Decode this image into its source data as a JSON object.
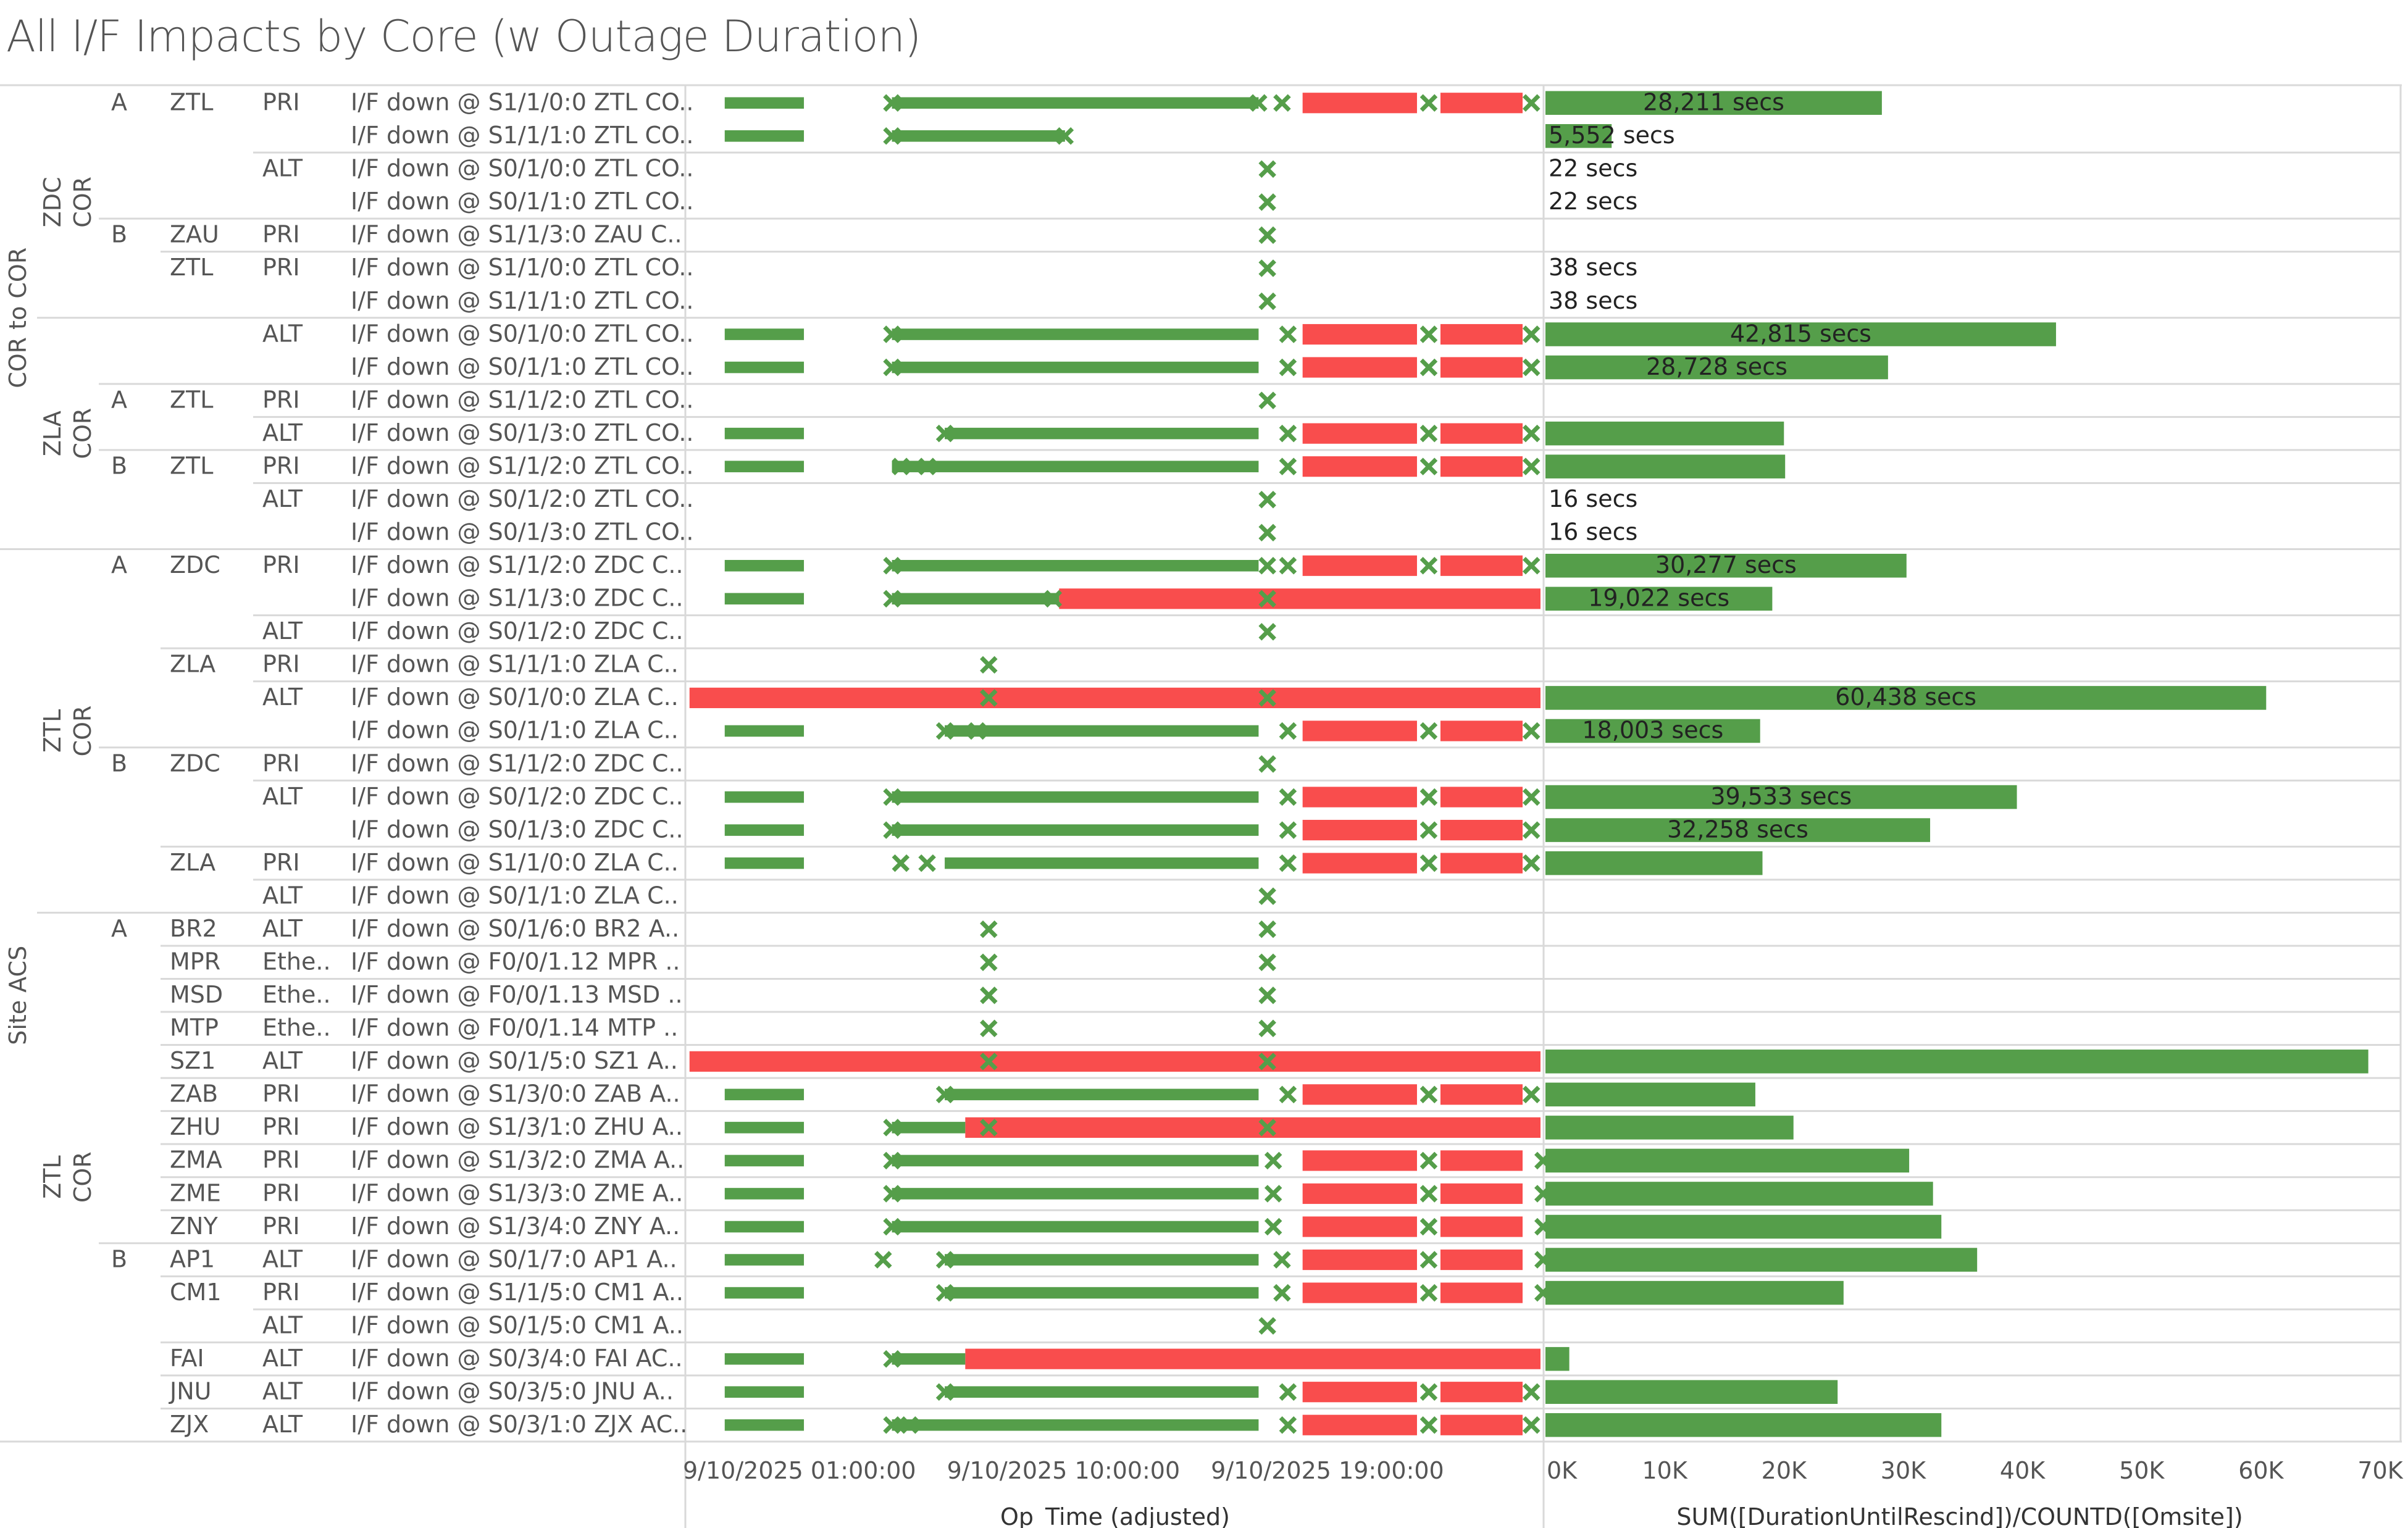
{
  "title": "All I/F Impacts by Core (w Outage Duration)",
  "colors": {
    "ok": "#559e4a",
    "down": "#f94d4d",
    "text": "#555555",
    "grid": "#d9d9d9"
  },
  "groups": [
    {
      "label": "COR to COR",
      "first": 0,
      "last": 13
    },
    {
      "label": "Site ACS",
      "first": 14,
      "last": 40
    }
  ],
  "cores": [
    {
      "label": "ZDC COR",
      "first": 0,
      "last": 6
    },
    {
      "label": "ZLA COR",
      "first": 7,
      "last": 13
    },
    {
      "label": "ZTL COR",
      "first": 14,
      "last": 24
    },
    {
      "label": "ZTL COR",
      "first": 25,
      "last": 40
    }
  ],
  "sides": [
    {
      "label": "A",
      "row": 0
    },
    {
      "label": "B",
      "row": 4
    },
    {
      "label": "A",
      "row": 9
    },
    {
      "label": "B",
      "row": 11
    },
    {
      "label": "A",
      "row": 14
    },
    {
      "label": "B",
      "row": 20
    },
    {
      "label": "A",
      "row": 25
    },
    {
      "label": "B",
      "row": 35
    }
  ],
  "rows": [
    {
      "site": "ZTL",
      "type": "PRI",
      "desc": "I/F down @ S1/1/0:0 ZTL CO.."
    },
    {
      "site": "",
      "type": "",
      "desc": "I/F down @ S1/1/1:0 ZTL CO.."
    },
    {
      "site": "",
      "type": "ALT",
      "desc": "I/F down @ S0/1/0:0 ZTL CO.."
    },
    {
      "site": "",
      "type": "",
      "desc": "I/F down @ S0/1/1:0 ZTL CO.."
    },
    {
      "site": "ZAU",
      "type": "PRI",
      "desc": "I/F down @ S1/1/3:0 ZAU C.."
    },
    {
      "site": "ZTL",
      "type": "PRI",
      "desc": "I/F down @ S1/1/0:0 ZTL CO.."
    },
    {
      "site": "",
      "type": "",
      "desc": "I/F down @ S1/1/1:0 ZTL CO.."
    },
    {
      "site": "",
      "type": "ALT",
      "desc": "I/F down @ S0/1/0:0 ZTL CO.."
    },
    {
      "site": "",
      "type": "",
      "desc": "I/F down @ S0/1/1:0 ZTL CO.."
    },
    {
      "site": "ZTL",
      "type": "PRI",
      "desc": "I/F down @ S1/1/2:0 ZTL CO.."
    },
    {
      "site": "",
      "type": "ALT",
      "desc": "I/F down @ S0/1/3:0 ZTL CO.."
    },
    {
      "site": "ZTL",
      "type": "PRI",
      "desc": "I/F down @ S1/1/2:0 ZTL CO.."
    },
    {
      "site": "",
      "type": "ALT",
      "desc": "I/F down @ S0/1/2:0 ZTL CO.."
    },
    {
      "site": "",
      "type": "",
      "desc": "I/F down @ S0/1/3:0 ZTL CO.."
    },
    {
      "site": "ZDC",
      "type": "PRI",
      "desc": "I/F down @ S1/1/2:0 ZDC C.."
    },
    {
      "site": "",
      "type": "",
      "desc": "I/F down @ S1/1/3:0 ZDC C.."
    },
    {
      "site": "",
      "type": "ALT",
      "desc": "I/F down @ S0/1/2:0 ZDC C.."
    },
    {
      "site": "ZLA",
      "type": "PRI",
      "desc": "I/F down @ S1/1/1:0 ZLA C.."
    },
    {
      "site": "",
      "type": "ALT",
      "desc": "I/F down @ S0/1/0:0 ZLA C.."
    },
    {
      "site": "",
      "type": "",
      "desc": "I/F down @ S0/1/1:0 ZLA C.."
    },
    {
      "site": "ZDC",
      "type": "PRI",
      "desc": "I/F down @ S1/1/2:0 ZDC C.."
    },
    {
      "site": "",
      "type": "ALT",
      "desc": "I/F down @ S0/1/2:0 ZDC C.."
    },
    {
      "site": "",
      "type": "",
      "desc": "I/F down @ S0/1/3:0 ZDC C.."
    },
    {
      "site": "ZLA",
      "type": "PRI",
      "desc": "I/F down @ S1/1/0:0 ZLA C.."
    },
    {
      "site": "",
      "type": "ALT",
      "desc": "I/F down @ S0/1/1:0 ZLA C.."
    },
    {
      "site": "BR2",
      "type": "ALT",
      "desc": "I/F down @ S0/1/6:0 BR2 A.."
    },
    {
      "site": "MPR",
      "type": "Ethe..",
      "desc": "I/F down @ F0/0/1.12 MPR .."
    },
    {
      "site": "MSD",
      "type": "Ethe..",
      "desc": "I/F down @ F0/0/1.13 MSD .."
    },
    {
      "site": "MTP",
      "type": "Ethe..",
      "desc": "I/F down @ F0/0/1.14 MTP .."
    },
    {
      "site": "SZ1",
      "type": "ALT",
      "desc": "I/F down @ S0/1/5:0 SZ1 A.."
    },
    {
      "site": "ZAB",
      "type": "PRI",
      "desc": "I/F down @ S1/3/0:0 ZAB A.."
    },
    {
      "site": "ZHU",
      "type": "PRI",
      "desc": "I/F down @ S1/3/1:0 ZHU A.."
    },
    {
      "site": "ZMA",
      "type": "PRI",
      "desc": "I/F down @ S1/3/2:0 ZMA A.."
    },
    {
      "site": "ZME",
      "type": "PRI",
      "desc": "I/F down @ S1/3/3:0 ZME A.."
    },
    {
      "site": "ZNY",
      "type": "PRI",
      "desc": "I/F down @ S1/3/4:0 ZNY A.."
    },
    {
      "site": "AP1",
      "type": "ALT",
      "desc": "I/F down @ S0/1/7:0 AP1 A.."
    },
    {
      "site": "CM1",
      "type": "PRI",
      "desc": "I/F down @ S1/1/5:0 CM1 A.."
    },
    {
      "site": "",
      "type": "ALT",
      "desc": "I/F down @ S0/1/5:0 CM1 A.."
    },
    {
      "site": "FAI",
      "type": "ALT",
      "desc": "I/F down @ S0/3/4:0 FAI AC.."
    },
    {
      "site": "JNU",
      "type": "ALT",
      "desc": "I/F down @ S0/3/5:0 JNU A.."
    },
    {
      "site": "ZJX",
      "type": "ALT",
      "desc": "I/F down @ S0/3/1:0 ZJX AC.."
    }
  ],
  "chart_data": [
    {
      "type": "timeline",
      "xlabel": "Op_Time (adjusted)",
      "ticks": [
        "9/10/2025 01:00:00",
        "9/10/2025 10:00:00",
        "9/10/2025 19:00:00"
      ],
      "tick_hours": [
        1,
        10,
        19
      ],
      "xlim_hours": [
        1,
        29.9
      ],
      "events_hours_description": "green = up segments, red = down segments, markers = state changes, hours after 9/10/2025 00:00:00",
      "rows": [
        {
          "green": [
            [
              2.3,
              5.0
            ],
            [
              8.0,
              20.5
            ]
          ],
          "red": [
            [
              22.0,
              25.9
            ],
            [
              26.7,
              29.5
            ]
          ],
          "marks": [
            8.0,
            20.5,
            21.3,
            26.3,
            29.8
          ]
        },
        {
          "green": [
            [
              2.3,
              5.0
            ],
            [
              8.0,
              13.9
            ]
          ],
          "red": [],
          "marks": [
            8.0,
            13.9
          ]
        },
        {
          "green": [],
          "red": [],
          "marks": [
            20.8
          ]
        },
        {
          "green": [],
          "red": [],
          "marks": [
            20.8
          ]
        },
        {
          "green": [],
          "red": [],
          "marks": [
            20.8
          ]
        },
        {
          "green": [],
          "red": [],
          "marks": [
            20.8
          ]
        },
        {
          "green": [],
          "red": [],
          "marks": [
            20.8
          ]
        },
        {
          "green": [
            [
              2.3,
              5.0
            ],
            [
              8.0,
              20.5
            ]
          ],
          "red": [
            [
              22.0,
              25.9
            ],
            [
              26.7,
              29.5
            ]
          ],
          "marks": [
            8.0,
            21.5,
            26.3,
            29.8
          ]
        },
        {
          "green": [
            [
              2.3,
              5.0
            ],
            [
              8.0,
              20.5
            ]
          ],
          "red": [
            [
              22.0,
              25.9
            ],
            [
              26.7,
              29.5
            ]
          ],
          "marks": [
            8.0,
            21.5,
            26.3,
            29.8
          ]
        },
        {
          "green": [],
          "red": [],
          "marks": [
            20.8
          ]
        },
        {
          "green": [
            [
              2.3,
              5.0
            ],
            [
              9.8,
              20.5
            ]
          ],
          "red": [
            [
              22.0,
              25.9
            ],
            [
              26.7,
              29.5
            ]
          ],
          "marks": [
            9.8,
            21.5,
            26.3,
            29.8
          ]
        },
        {
          "green": [
            [
              2.3,
              5.0
            ],
            [
              8.0,
              20.5
            ]
          ],
          "red": [
            [
              22.0,
              25.9
            ],
            [
              26.7,
              29.5
            ]
          ],
          "marks": [
            8.3,
            9.2,
            21.5,
            26.3,
            29.8
          ]
        },
        {
          "green": [],
          "red": [],
          "marks": [
            20.8
          ]
        },
        {
          "green": [],
          "red": [],
          "marks": [
            20.8
          ]
        },
        {
          "green": [
            [
              2.3,
              5.0
            ],
            [
              8.0,
              20.5
            ]
          ],
          "red": [
            [
              22.0,
              25.9
            ],
            [
              26.7,
              29.5
            ]
          ],
          "marks": [
            8.0,
            20.8,
            21.5,
            26.3,
            29.8
          ]
        },
        {
          "green": [
            [
              2.3,
              5.0
            ],
            [
              8.0,
              13.7
            ]
          ],
          "red": [
            [
              13.7,
              31.6
            ]
          ],
          "marks": [
            8.0,
            13.5,
            20.8
          ]
        },
        {
          "green": [],
          "red": [],
          "marks": [
            20.8
          ]
        },
        {
          "green": [],
          "red": [],
          "marks": [
            11.3
          ]
        },
        {
          "green": [],
          "red": [
            [
              1.1,
              32.4
            ]
          ],
          "marks": [
            11.3,
            20.8
          ]
        },
        {
          "green": [
            [
              2.3,
              5.0
            ],
            [
              9.8,
              20.5
            ]
          ],
          "red": [
            [
              22.0,
              25.9
            ],
            [
              26.7,
              29.5
            ]
          ],
          "marks": [
            9.8,
            10.9,
            21.5,
            26.3,
            29.8
          ]
        },
        {
          "green": [],
          "red": [],
          "marks": [
            20.8
          ]
        },
        {
          "green": [
            [
              2.3,
              5.0
            ],
            [
              8.0,
              20.5
            ]
          ],
          "red": [
            [
              22.0,
              25.9
            ],
            [
              26.7,
              29.5
            ]
          ],
          "marks": [
            8.0,
            21.5,
            26.3,
            29.8
          ]
        },
        {
          "green": [
            [
              2.3,
              5.0
            ],
            [
              8.0,
              20.5
            ]
          ],
          "red": [
            [
              22.0,
              25.9
            ],
            [
              26.7,
              29.5
            ]
          ],
          "marks": [
            8.0,
            21.5,
            26.3,
            29.8
          ]
        },
        {
          "green": [
            [
              2.3,
              5.0
            ],
            [
              9.8,
              20.5
            ]
          ],
          "red": [
            [
              22.0,
              25.9
            ],
            [
              26.7,
              29.5
            ]
          ],
          "marks": [
            8.3,
            9.2,
            21.5,
            26.3,
            29.8
          ]
        },
        {
          "green": [],
          "red": [],
          "marks": [
            20.8
          ]
        },
        {
          "green": [],
          "red": [],
          "marks": [
            11.3,
            20.8
          ]
        },
        {
          "green": [],
          "red": [],
          "marks": [
            11.3,
            20.8
          ]
        },
        {
          "green": [],
          "red": [],
          "marks": [
            11.3,
            20.8
          ]
        },
        {
          "green": [],
          "red": [],
          "marks": [
            11.3,
            20.8
          ]
        },
        {
          "green": [],
          "red": [
            [
              1.1,
              32.4
            ]
          ],
          "marks": [
            11.3,
            20.8
          ]
        },
        {
          "green": [
            [
              2.3,
              5.0
            ],
            [
              9.8,
              20.5
            ]
          ],
          "red": [
            [
              22.0,
              25.9
            ],
            [
              26.7,
              29.5
            ]
          ],
          "marks": [
            9.8,
            21.5,
            26.3,
            29.8
          ]
        },
        {
          "green": [
            [
              2.3,
              5.0
            ],
            [
              8.0,
              10.5
            ]
          ],
          "red": [
            [
              10.5,
              31.6
            ]
          ],
          "marks": [
            8.0,
            11.3,
            20.8
          ]
        },
        {
          "green": [
            [
              2.3,
              5.0
            ],
            [
              8.0,
              20.5
            ]
          ],
          "red": [
            [
              22.0,
              25.9
            ],
            [
              26.7,
              29.5
            ]
          ],
          "marks": [
            8.0,
            21.0,
            26.3,
            30.2
          ]
        },
        {
          "green": [
            [
              2.3,
              5.0
            ],
            [
              8.0,
              20.5
            ]
          ],
          "red": [
            [
              22.0,
              25.9
            ],
            [
              26.7,
              29.5
            ]
          ],
          "marks": [
            8.0,
            21.0,
            26.3,
            30.2
          ]
        },
        {
          "green": [
            [
              2.3,
              5.0
            ],
            [
              8.0,
              20.5
            ]
          ],
          "red": [
            [
              22.0,
              25.9
            ],
            [
              26.7,
              29.5
            ]
          ],
          "marks": [
            8.0,
            21.0,
            26.3,
            30.2
          ]
        },
        {
          "green": [
            [
              2.3,
              5.0
            ],
            [
              9.8,
              20.5
            ]
          ],
          "red": [
            [
              22.0,
              25.9
            ],
            [
              26.7,
              29.5
            ]
          ],
          "marks": [
            7.7,
            9.8,
            21.3,
            26.3,
            30.2
          ]
        },
        {
          "green": [
            [
              2.3,
              5.0
            ],
            [
              9.8,
              20.5
            ]
          ],
          "red": [
            [
              22.0,
              25.9
            ],
            [
              26.7,
              29.5
            ]
          ],
          "marks": [
            9.8,
            21.3,
            26.3,
            30.2
          ]
        },
        {
          "green": [],
          "red": [],
          "marks": [
            20.8
          ]
        },
        {
          "green": [
            [
              2.3,
              5.0
            ],
            [
              8.0,
              10.5
            ]
          ],
          "red": [
            [
              10.5,
              32.3
            ]
          ],
          "marks": [
            8.0
          ]
        },
        {
          "green": [
            [
              2.3,
              5.0
            ],
            [
              9.8,
              20.5
            ]
          ],
          "red": [
            [
              22.0,
              25.9
            ],
            [
              26.7,
              29.5
            ]
          ],
          "marks": [
            9.8,
            21.5,
            26.3,
            29.8
          ]
        },
        {
          "green": [
            [
              2.3,
              5.0
            ],
            [
              8.0,
              20.5
            ]
          ],
          "red": [
            [
              22.0,
              25.9
            ],
            [
              26.7,
              29.5
            ]
          ],
          "marks": [
            8.0,
            8.6,
            21.5,
            26.3,
            29.8
          ]
        }
      ]
    },
    {
      "type": "bar",
      "xlabel": "SUM([DurationUntilRescind])/COUNTD([Omsite])",
      "ticks": [
        "0K",
        "10K",
        "20K",
        "30K",
        "40K",
        "50K",
        "60K",
        "70K"
      ],
      "xlim": [
        0,
        70000
      ],
      "values": [
        28211,
        5552,
        22,
        22,
        0,
        38,
        38,
        42815,
        28728,
        0,
        20000,
        20100,
        16,
        16,
        30277,
        19022,
        0,
        0,
        60438,
        18003,
        0,
        39533,
        32258,
        18200,
        0,
        0,
        0,
        0,
        0,
        69000,
        17600,
        20800,
        30500,
        32500,
        33200,
        36200,
        25000,
        0,
        2000,
        24500,
        33200
      ],
      "labels": [
        "28,211 secs",
        "5,552 secs",
        "22 secs",
        "22 secs",
        "",
        "38 secs",
        "38 secs",
        "42,815 secs",
        "28,728 secs",
        "",
        "",
        "",
        "16 secs",
        "16 secs",
        "30,277 secs",
        "19,022 secs",
        "",
        "",
        "60,438 secs",
        "18,003 secs",
        "",
        "39,533 secs",
        "32,258 secs",
        "",
        "",
        "",
        "",
        "",
        "",
        "",
        "",
        "",
        "",
        "",
        "",
        "",
        "",
        "",
        "",
        "",
        ""
      ]
    }
  ]
}
